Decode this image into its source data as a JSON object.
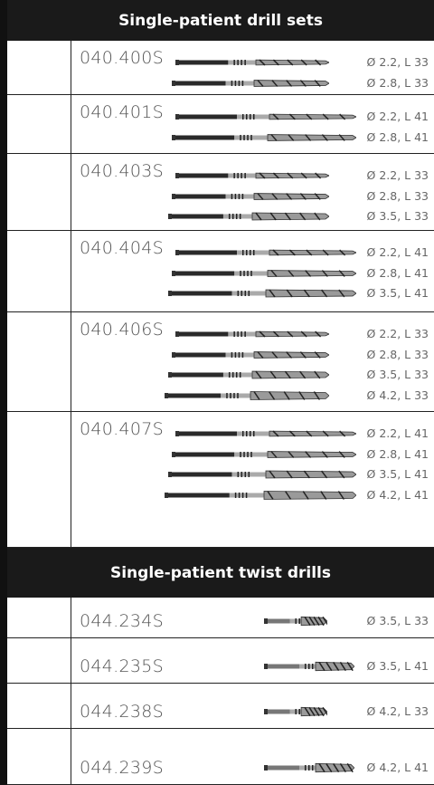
{
  "sections": [
    {
      "title": "Single-patient drill sets",
      "products": [
        {
          "code": "040.400S",
          "specs": [
            "Ø 2.2, L 33",
            "Ø 2.8, L 33"
          ]
        },
        {
          "code": "040.401S",
          "specs": [
            "Ø 2.2, L 41",
            "Ø 2.8, L 41"
          ]
        },
        {
          "code": "040.403S",
          "specs": [
            "Ø 2.2, L 33",
            "Ø 2.8, L 33",
            "Ø 3.5, L 33"
          ]
        },
        {
          "code": "040.404S",
          "specs": [
            "Ø 2.2, L 41",
            "Ø 2.8, L 41",
            "Ø 3.5, L 41"
          ]
        },
        {
          "code": "040.406S",
          "specs": [
            "Ø 2.2, L 33",
            "Ø 2.8, L 33",
            "Ø 3.5, L 33",
            "Ø 4.2, L 33"
          ]
        },
        {
          "code": "040.407S",
          "specs": [
            "Ø 2.2, L 41",
            "Ø 2.8, L 41",
            "Ø 3.5, L 41",
            "Ø 4.2, L 41"
          ]
        }
      ]
    },
    {
      "title": "Single-patient twist drills",
      "products": [
        {
          "code": "044.234S",
          "specs": [
            "Ø 3.5, L 33"
          ]
        },
        {
          "code": "044.235S",
          "specs": [
            "Ø 3.5, L 41"
          ]
        },
        {
          "code": "044.238S",
          "specs": [
            "Ø 4.2, L 33"
          ]
        },
        {
          "code": "044.239S",
          "specs": [
            "Ø 4.2, L 41"
          ]
        }
      ]
    }
  ]
}
